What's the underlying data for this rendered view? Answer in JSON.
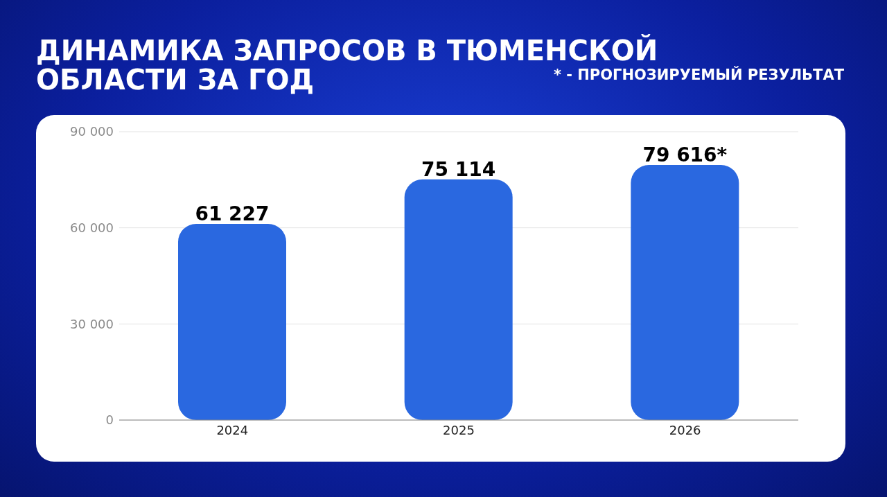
{
  "chart_data": {
    "type": "bar",
    "title": "ДИНАМИКА ЗАПРОСОВ В ТЮМЕНСКОЙ ОБЛАСТИ ЗА ГОД",
    "annotations": [
      "* - ПРОГНОЗИРУЕМЫЙ РЕЗУЛЬТАТ"
    ],
    "categories": [
      "2024",
      "2025",
      "2026"
    ],
    "values": [
      61227,
      75114,
      79616
    ],
    "value_labels": [
      "61 227",
      "75 114",
      "79 616*"
    ],
    "color": "#2a68e0",
    "ylim": [
      0,
      90000
    ],
    "yticks": [
      0,
      {
        "value": 30000,
        "label": "30 000"
      },
      {
        "value": 60000,
        "label": "60 000"
      },
      {
        "value": 90000,
        "label": "90 000"
      }
    ],
    "grid": "y"
  }
}
